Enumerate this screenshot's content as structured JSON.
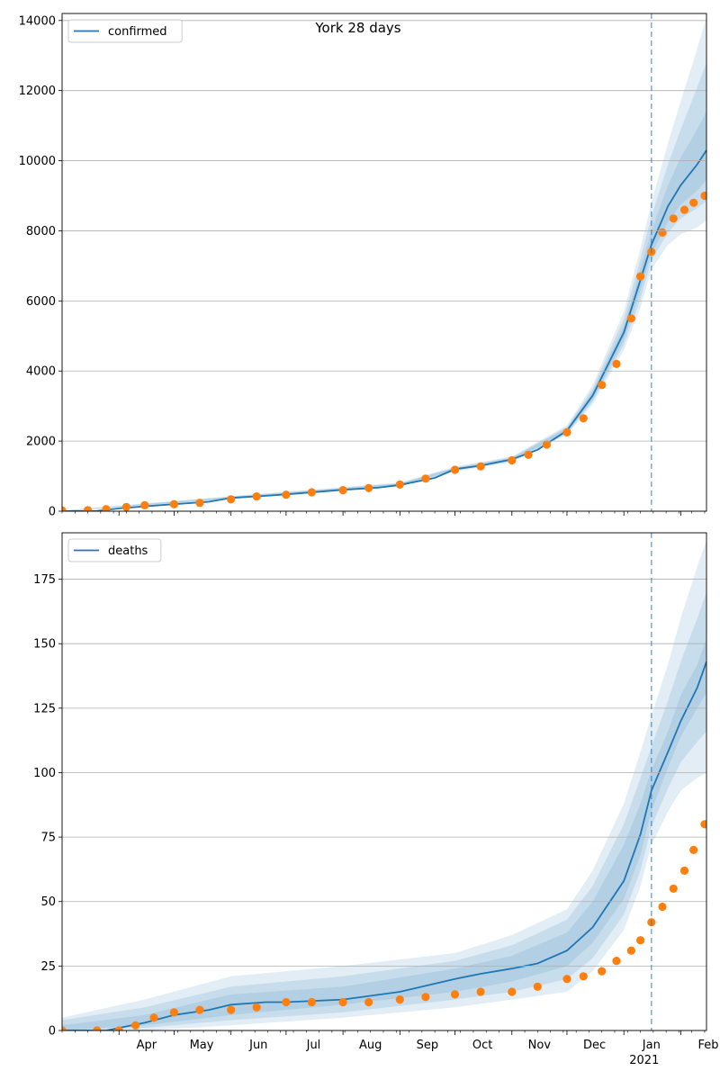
{
  "chart_data": [
    {
      "type": "line",
      "title": "York 28 days",
      "legend": {
        "placement": "top-left",
        "label": "confirmed"
      },
      "xlabel": "",
      "ylabel": "",
      "xlim": [
        "2020-03-01",
        "2021-02-15"
      ],
      "ylim": [
        0,
        14200
      ],
      "yticks": [
        0,
        2000,
        4000,
        6000,
        8000,
        10000,
        12000,
        14000
      ],
      "grid": "horizontal",
      "forecast_start": "2021-01-16",
      "series": [
        {
          "name": "confirmed",
          "style": "line",
          "color": "#1f77b4",
          "x": [
            "2020-03-01",
            "2020-03-20",
            "2020-04-01",
            "2020-04-20",
            "2020-05-01",
            "2020-05-20",
            "2020-06-01",
            "2020-06-20",
            "2020-07-01",
            "2020-07-20",
            "2020-08-01",
            "2020-08-20",
            "2020-09-01",
            "2020-09-20",
            "2020-10-01",
            "2020-10-15",
            "2020-11-01",
            "2020-11-15",
            "2020-12-01",
            "2020-12-15",
            "2021-01-01",
            "2021-01-10",
            "2021-01-16",
            "2021-01-25",
            "2021-02-01",
            "2021-02-10",
            "2021-02-15"
          ],
          "y": [
            0,
            10,
            80,
            160,
            200,
            270,
            380,
            440,
            480,
            560,
            610,
            670,
            750,
            950,
            1200,
            1300,
            1480,
            1750,
            2300,
            3300,
            5100,
            6600,
            7600,
            8700,
            9300,
            9900,
            10300
          ],
          "band": {
            "color": "#1f77b4",
            "x": [
              "2020-03-01",
              "2020-06-01",
              "2020-09-01",
              "2020-10-01",
              "2020-11-01",
              "2020-12-01",
              "2020-12-15",
              "2021-01-01",
              "2021-01-10",
              "2021-01-16",
              "2021-01-25",
              "2021-02-01",
              "2021-02-10",
              "2021-02-15"
            ],
            "levels": [
              {
                "lower": [
                  0,
                  340,
                  700,
                  1130,
                  1400,
                  2180,
                  3050,
                  4600,
                  5800,
                  6900,
                  7600,
                  7900,
                  8100,
                  8300
                ],
                "upper": [
                  20,
                  430,
                  820,
                  1270,
                  1560,
                  2450,
                  3600,
                  5700,
                  7500,
                  8800,
                  10500,
                  11700,
                  13200,
                  14100
                ]
              },
              {
                "lower": [
                  0,
                  350,
                  715,
                  1150,
                  1420,
                  2210,
                  3120,
                  4750,
                  6050,
                  7150,
                  7950,
                  8350,
                  8650,
                  8850
                ],
                "upper": [
                  15,
                  420,
                  800,
                  1250,
                  1540,
                  2410,
                  3500,
                  5500,
                  7200,
                  8400,
                  9900,
                  10900,
                  12100,
                  12800
                ]
              },
              {
                "lower": [
                  0,
                  360,
                  730,
                  1170,
                  1440,
                  2240,
                  3180,
                  4880,
                  6300,
                  7350,
                  8250,
                  8750,
                  9150,
                  9450
                ],
                "upper": [
                  10,
                  405,
                  785,
                  1235,
                  1520,
                  2370,
                  3420,
                  5300,
                  6900,
                  8000,
                  9300,
                  10100,
                  10900,
                  11400
                ]
              }
            ]
          }
        },
        {
          "name": "observed",
          "style": "markers",
          "color": "#ff7f0e",
          "x": [
            "2020-03-01",
            "2020-03-15",
            "2020-03-25",
            "2020-04-05",
            "2020-04-15",
            "2020-05-01",
            "2020-05-15",
            "2020-06-01",
            "2020-06-15",
            "2020-07-01",
            "2020-07-15",
            "2020-08-01",
            "2020-08-15",
            "2020-09-01",
            "2020-09-15",
            "2020-10-01",
            "2020-10-15",
            "2020-11-01",
            "2020-11-10",
            "2020-11-20",
            "2020-12-01",
            "2020-12-10",
            "2020-12-20",
            "2020-12-28",
            "2021-01-05",
            "2021-01-10",
            "2021-01-16",
            "2021-01-22",
            "2021-01-28",
            "2021-02-03",
            "2021-02-08",
            "2021-02-14"
          ],
          "y": [
            20,
            30,
            60,
            120,
            170,
            200,
            240,
            340,
            420,
            470,
            540,
            600,
            660,
            760,
            930,
            1180,
            1280,
            1450,
            1610,
            1900,
            2250,
            2650,
            3600,
            4200,
            5500,
            6700,
            7400,
            7950,
            8350,
            8600,
            8800,
            9000
          ]
        }
      ],
      "xtick_labels": []
    },
    {
      "type": "line",
      "title": "",
      "legend": {
        "placement": "top-left",
        "label": "deaths"
      },
      "xlabel": "",
      "ylabel": "",
      "xlim": [
        "2020-03-01",
        "2021-02-15"
      ],
      "ylim": [
        0,
        193
      ],
      "yticks": [
        0,
        25,
        50,
        75,
        100,
        125,
        150,
        175
      ],
      "grid": "horizontal",
      "forecast_start": "2021-01-16",
      "series": [
        {
          "name": "deaths",
          "style": "line",
          "color": "#1f77b4",
          "x": [
            "2020-03-01",
            "2020-03-25",
            "2020-04-15",
            "2020-05-01",
            "2020-05-20",
            "2020-06-01",
            "2020-06-20",
            "2020-07-01",
            "2020-08-01",
            "2020-09-01",
            "2020-10-01",
            "2020-10-15",
            "2020-11-01",
            "2020-11-15",
            "2020-12-01",
            "2020-12-15",
            "2021-01-01",
            "2021-01-10",
            "2021-01-16",
            "2021-01-25",
            "2021-02-01",
            "2021-02-10",
            "2021-02-15"
          ],
          "y": [
            0,
            0,
            3,
            6,
            8,
            10,
            11,
            11,
            12,
            15,
            20,
            22,
            24,
            26,
            31,
            40,
            58,
            76,
            93,
            108,
            120,
            133,
            143
          ],
          "band": {
            "color": "#1f77b4",
            "x": [
              "2020-03-01",
              "2020-04-15",
              "2020-06-01",
              "2020-08-01",
              "2020-10-01",
              "2020-11-01",
              "2020-12-01",
              "2020-12-15",
              "2021-01-01",
              "2021-01-10",
              "2021-01-16",
              "2021-01-25",
              "2021-02-01",
              "2021-02-10",
              "2021-02-15"
            ],
            "levels": [
              {
                "lower": [
                  0,
                  0,
                  2,
                  5,
                  9,
                  12,
                  15,
                  23,
                  39,
                  56,
                  72,
                  85,
                  93,
                  98,
                  100
                ],
                "upper": [
                  5,
                  12,
                  21,
                  25,
                  30,
                  37,
                  47,
                  62,
                  88,
                  108,
                  122,
                  142,
                  160,
                  180,
                  190
                ]
              },
              {
                "lower": [
                  0,
                  1,
                  4,
                  7,
                  12,
                  15,
                  20,
                  28,
                  45,
                  62,
                  79,
                  94,
                  104,
                  112,
                  116
                ],
                "upper": [
                  4,
                  9,
                  17,
                  21,
                  27,
                  33,
                  43,
                  56,
                  80,
                  98,
                  110,
                  128,
                  143,
                  160,
                  170
                ]
              },
              {
                "lower": [
                  0,
                  2,
                  6,
                  10,
                  15,
                  19,
                  25,
                  34,
                  51,
                  68,
                  85,
                  102,
                  114,
                  125,
                  131
                ],
                "upper": [
                  2,
                  6,
                  14,
                  17,
                  24,
                  29,
                  38,
                  50,
                  72,
                  88,
                  101,
                  116,
                  130,
                  142,
                  152
                ]
              }
            ]
          }
        },
        {
          "name": "observed",
          "style": "markers",
          "color": "#ff7f0e",
          "x": [
            "2020-03-01",
            "2020-03-20",
            "2020-04-01",
            "2020-04-10",
            "2020-04-20",
            "2020-05-01",
            "2020-05-15",
            "2020-06-01",
            "2020-06-15",
            "2020-07-01",
            "2020-07-15",
            "2020-08-01",
            "2020-08-15",
            "2020-09-01",
            "2020-09-15",
            "2020-10-01",
            "2020-10-15",
            "2020-11-01",
            "2020-11-15",
            "2020-12-01",
            "2020-12-10",
            "2020-12-20",
            "2020-12-28",
            "2021-01-05",
            "2021-01-10",
            "2021-01-16",
            "2021-01-22",
            "2021-01-28",
            "2021-02-03",
            "2021-02-08",
            "2021-02-14"
          ],
          "y": [
            0,
            0,
            0,
            2,
            5,
            7,
            8,
            8,
            9,
            11,
            11,
            11,
            11,
            12,
            13,
            14,
            15,
            15,
            17,
            20,
            21,
            23,
            27,
            31,
            35,
            42,
            48,
            55,
            62,
            70,
            80
          ]
        }
      ],
      "xtick_labels": [
        "Apr",
        "May",
        "Jun",
        "Jul",
        "Aug",
        "Sep",
        "Oct",
        "Nov",
        "Dec",
        "Jan",
        "Feb"
      ],
      "xtick_dates": [
        "2020-04-01",
        "2020-05-01",
        "2020-06-01",
        "2020-07-01",
        "2020-08-01",
        "2020-09-01",
        "2020-10-01",
        "2020-11-01",
        "2020-12-01",
        "2021-01-01",
        "2021-02-01"
      ],
      "year_label": "2021"
    }
  ]
}
